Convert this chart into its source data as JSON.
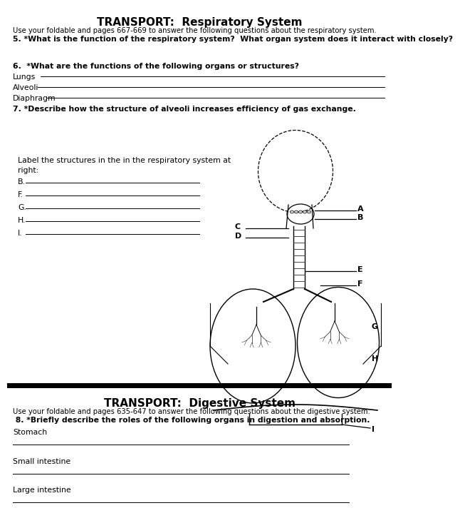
{
  "title1": "TRANSPORT:  Respiratory System",
  "subtitle1": "Use your foldable and pages 667-669 to answer the following questions about the respiratory system.",
  "q5": "5. *What is the function of the respiratory system?  What organ system does it interact with closely?",
  "q6": "6.  *What are the functions of the following organs or structures?",
  "lungs_label": "Lungs",
  "alveoli_label": "Alveoli",
  "diaphragm_label": "Diaphragm",
  "q7": "7. *Describe how the structure of alveoli increases efficiency of gas exchange.",
  "label_instr": "Label the structures in the in the respiratory system at\nright:",
  "fill_labels": [
    "B.",
    "F.",
    "G.",
    "H.",
    "I."
  ],
  "title2": "TRANSPORT:  Digestive System",
  "subtitle2": "Use your foldable and pages 635-647 to answer the following questions about the digestive system.",
  "q8": " 8. *Briefly describe the roles of the following organs in digestion and absorption.",
  "dig_labels": [
    "Stomach",
    "Small intestine",
    "Large intestine"
  ],
  "bg_color": "#ffffff",
  "text_color": "#000000",
  "line_color": "#000000"
}
